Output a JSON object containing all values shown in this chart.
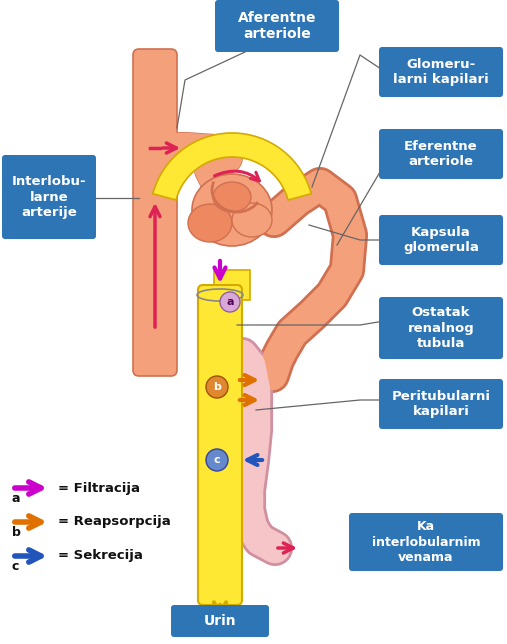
{
  "bg_color": "#ffffff",
  "box_color": "#2E75B6",
  "box_text_color": "#ffffff",
  "box_labels": {
    "aferentne": "Aferentne\narteriole",
    "glomerularni": "Glomeru-\nlarni kapilari",
    "eferentne": "Eferentne\narteriole",
    "kapsula": "Kapsula\nglomerula",
    "ostatak": "Ostatak\nrenalnog\ntubula",
    "peritubularni": "Peritubularni\nkapilari",
    "interlobularne": "Interlobu-\nlarne\narterije",
    "ka_inter": "Ka\ninterlobularnim\nvenama",
    "urin": "Urin"
  },
  "arrow_colors": {
    "filtracija": "#CC00CC",
    "reapsorpcija": "#E07000",
    "sekrecija": "#2255BB"
  },
  "legend_labels": {
    "filtracija": "= Filtracija",
    "reapsorpcija": "= Reapsorpcija",
    "sekrecija": "= Sekrecija"
  },
  "body_colors": {
    "artery_salmon": "#F4A07A",
    "artery_edge": "#D07050",
    "tubule_yellow": "#FFE833",
    "tubule_edge": "#D4AA00",
    "capillary_pink": "#F5C5C8",
    "capillary_edge": "#D090A0",
    "glom_salmon": "#F4A07A",
    "glom_inner": "#EE8860",
    "circle_a_face": "#D8A8D8",
    "circle_a_edge": "#9060A0",
    "circle_b_face": "#E08830",
    "circle_b_edge": "#A05000",
    "circle_c_face": "#6688CC",
    "circle_c_edge": "#334499"
  }
}
